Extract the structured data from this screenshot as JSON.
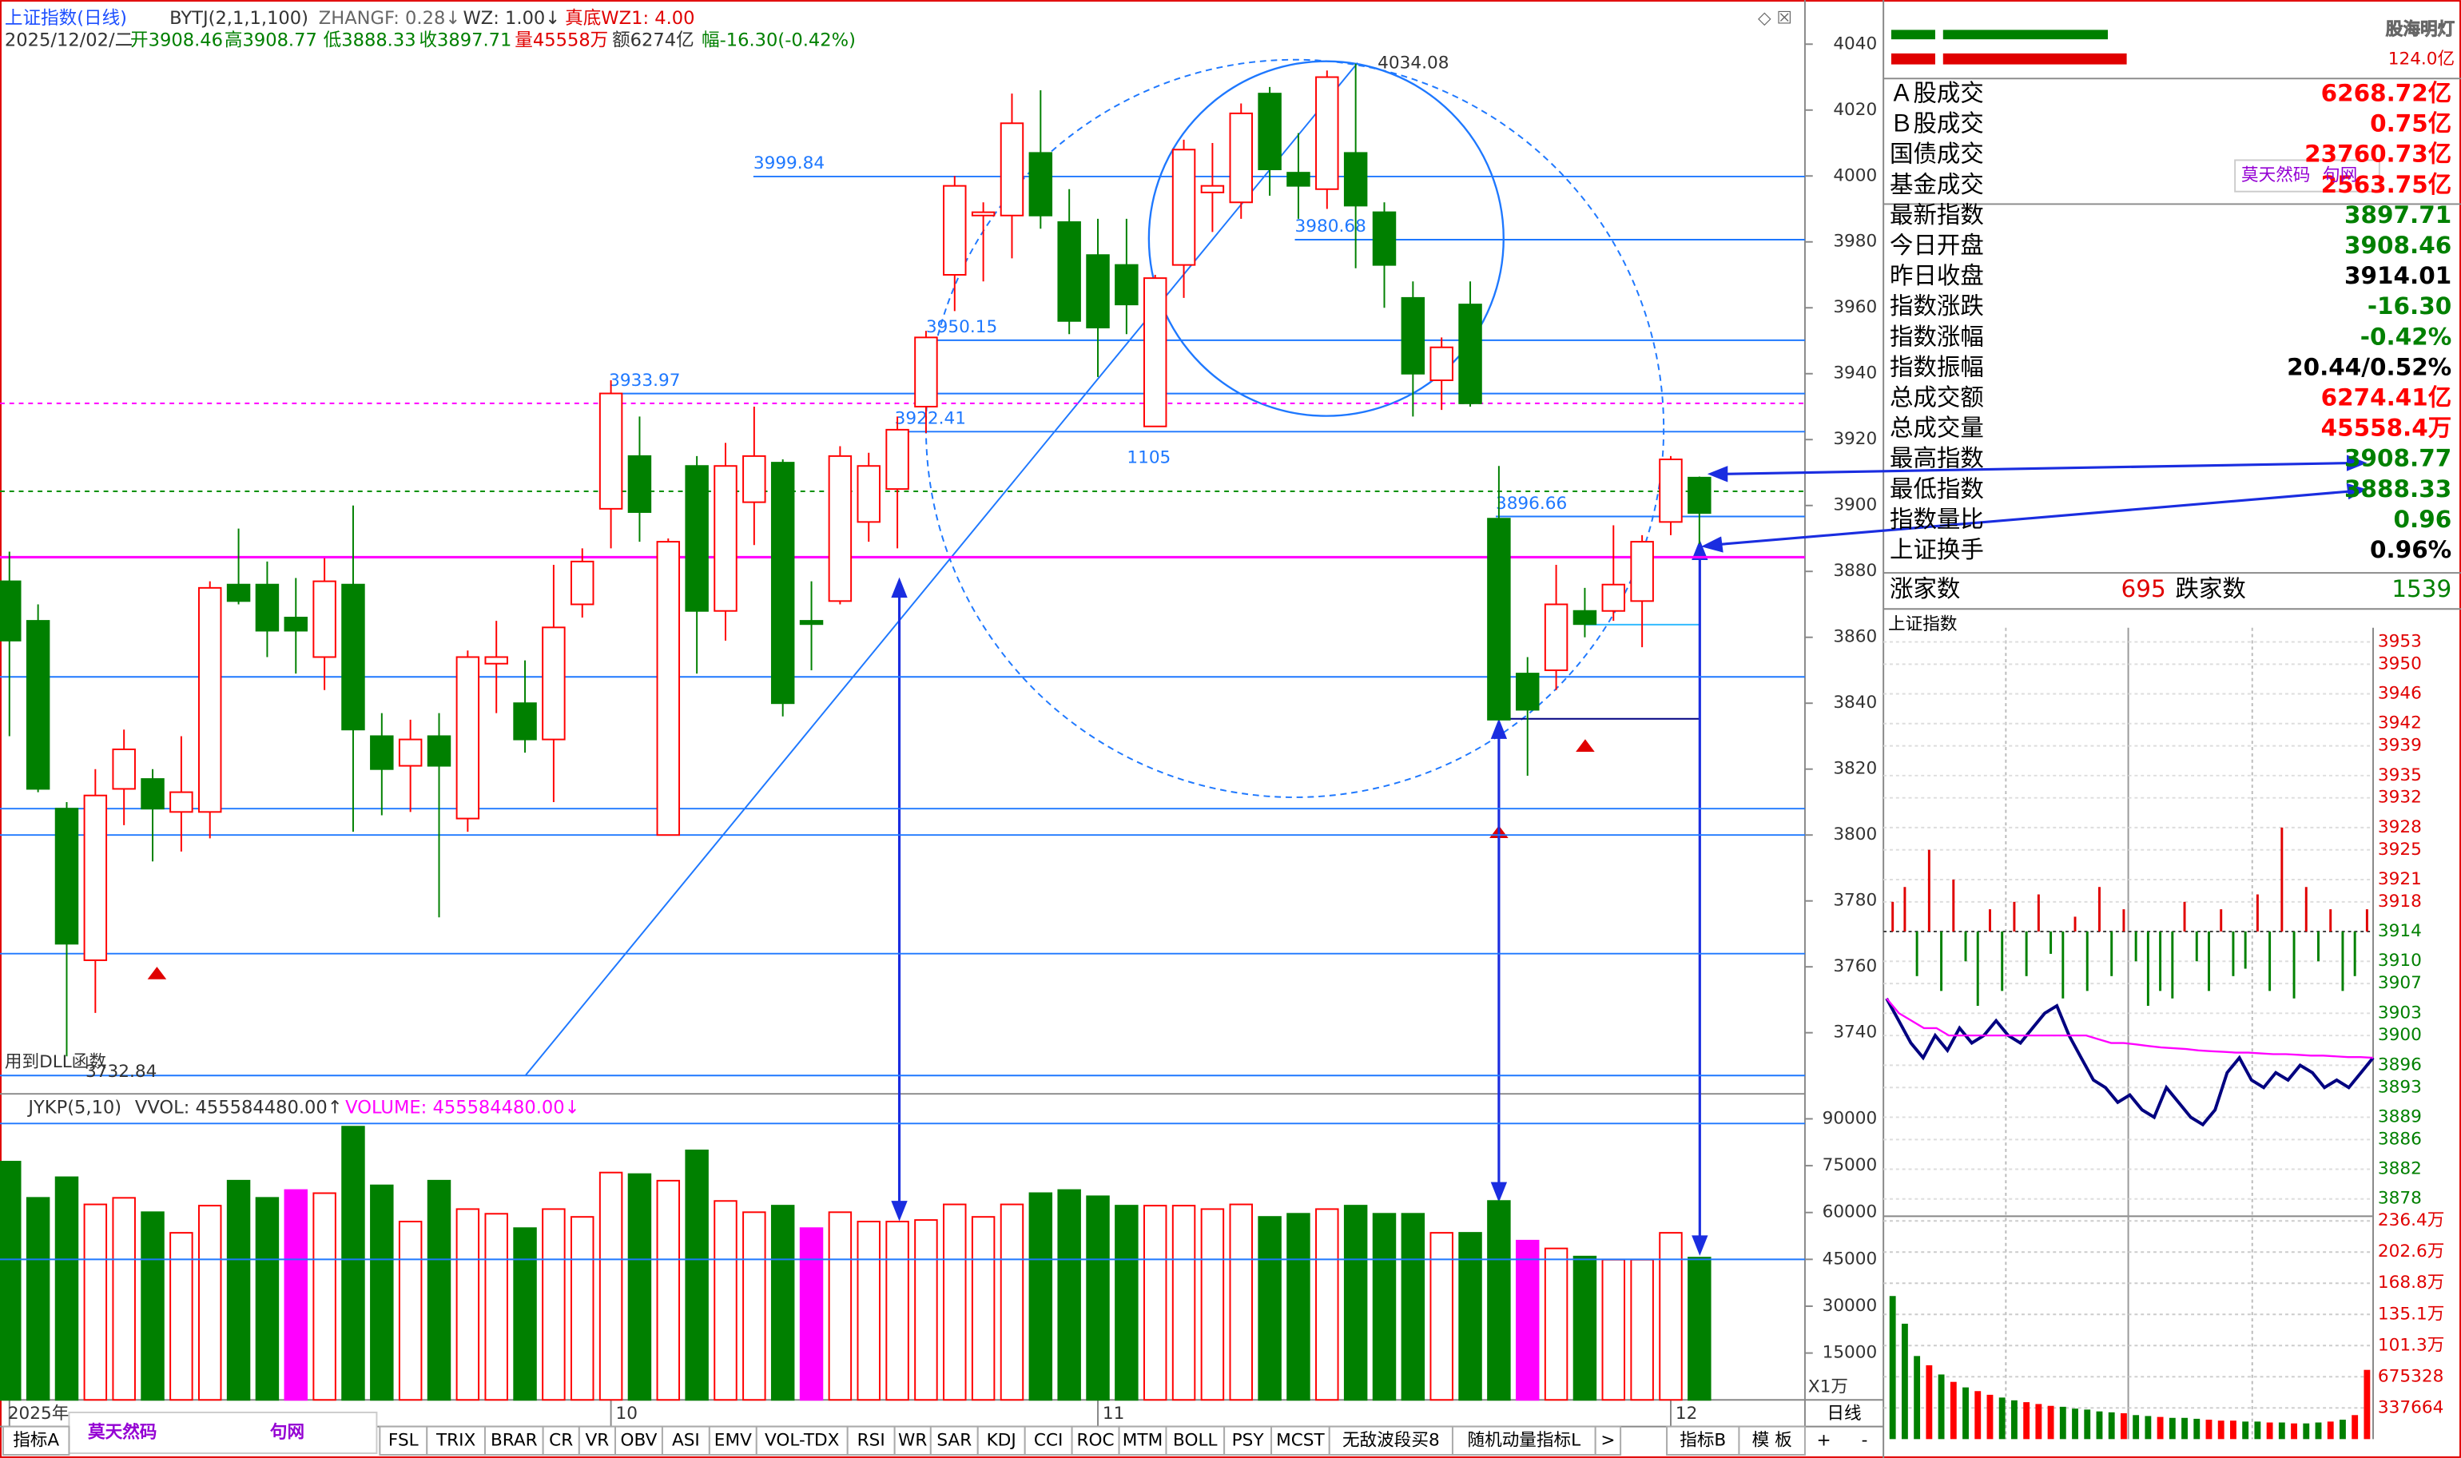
{
  "header": {
    "name": "上证指数(日线)",
    "indicator": "BYTJ(2,1,1,100)",
    "zhangf": "ZHANGF: 0.28↓",
    "wz": "WZ: 1.00↓",
    "wz1": "真底WZ1: 4.00",
    "date": "2025/12/02/二",
    "open": "开3908.46",
    "high": "高3908.77",
    "low": "低3888.33",
    "close": "收3897.71",
    "vol": "量45558万",
    "amount": "额6274亿",
    "change": "幅-16.30(-0.42%)"
  },
  "chart_data": [
    {
      "type": "candlestick",
      "up_color": "#ff0000",
      "down_color": "#008000",
      "categories": [
        "2025年",
        null,
        null,
        null,
        null,
        null,
        null,
        null,
        null,
        null,
        null,
        null,
        null,
        null,
        null,
        null,
        null,
        null,
        null,
        null,
        null,
        "10",
        null,
        null,
        null,
        null,
        null,
        null,
        null,
        null,
        null,
        null,
        null,
        null,
        null,
        null,
        null,
        null,
        "11",
        null,
        null,
        null,
        null,
        null,
        null,
        null,
        null,
        null,
        null,
        null,
        null,
        null,
        null,
        null,
        null,
        null,
        null,
        null,
        "12",
        null
      ],
      "open": [
        3877,
        3865,
        3808,
        3762,
        3814,
        3817,
        3807,
        3807,
        3876,
        3876,
        3866,
        3854,
        3876,
        3830,
        3821,
        3830,
        3805,
        3852,
        3840,
        3829,
        3870,
        3899,
        3915,
        3800,
        3912,
        3868,
        3901,
        3913,
        3865,
        3871,
        3895,
        3905,
        3930,
        3970,
        3988,
        3988,
        4007,
        3986,
        3976,
        3973,
        3924,
        3973,
        3995,
        3992,
        4025,
        4001,
        3996,
        4007,
        3989,
        3963,
        3938,
        3961,
        3896,
        3849,
        3850,
        3868,
        3868,
        3871,
        3895,
        3908.46
      ],
      "high": [
        3886,
        3870,
        3810,
        3820,
        3832,
        3820,
        3830,
        3877,
        3893,
        3883,
        3878,
        3884,
        3900,
        3837,
        3835,
        3837,
        3856,
        3865,
        3853,
        3882,
        3887,
        3938,
        3927,
        3890,
        3915,
        3919,
        3930,
        3914,
        3877,
        3918,
        3916,
        3927,
        3953,
        4000,
        3992,
        4025,
        4026,
        3996,
        3987,
        3987,
        3970,
        4011,
        4010,
        4022,
        4027,
        4013,
        4032,
        4034.08,
        3992,
        3968,
        3951,
        3968,
        3912,
        3854,
        3882,
        3875,
        3894,
        3891,
        3915,
        3908.77
      ],
      "low": [
        3830,
        3813,
        3732.84,
        3746,
        3803,
        3792,
        3795,
        3799,
        3870,
        3854,
        3849,
        3844,
        3801,
        3806,
        3807,
        3775,
        3801,
        3837,
        3825,
        3810,
        3866,
        3887,
        3889,
        3800,
        3849,
        3859,
        3888,
        3836,
        3850,
        3870,
        3889,
        3887,
        3922,
        3959,
        3968,
        3975,
        3984,
        3952,
        3939,
        3952,
        3924,
        3963,
        3983,
        3987,
        3994,
        3987,
        3990,
        3972,
        3960,
        3927,
        3929,
        3930,
        3835,
        3818,
        3844,
        3860,
        3865,
        3857,
        3891,
        3888.33
      ],
      "close": [
        3859,
        3814,
        3767,
        3812,
        3826,
        3808,
        3813,
        3875,
        3871,
        3862,
        3862,
        3877,
        3832,
        3820,
        3829,
        3821,
        3854,
        3854,
        3829,
        3863,
        3883,
        3934,
        3898,
        3889,
        3868,
        3912,
        3915,
        3840,
        3864,
        3915,
        3912,
        3923,
        3951,
        3997,
        3989,
        4016,
        3988,
        3956,
        3954,
        3961,
        3969,
        4008,
        3997,
        4019,
        4002,
        3997,
        4030,
        3991,
        3973,
        3940,
        3948,
        3931,
        3835,
        3838,
        3870,
        3864,
        3876,
        3889,
        3914,
        3897.71
      ],
      "ylim": [
        3722.4,
        4051
      ],
      "yticks": [
        3740,
        3760,
        3780,
        3800,
        3820,
        3840,
        3860,
        3880,
        3900,
        3920,
        3940,
        3960,
        3980,
        4000,
        4020,
        4040
      ],
      "levels": [
        3999.84,
        3980.68,
        3950.15,
        3933.97,
        3922.41,
        3896.66
      ],
      "lines": [
        3848,
        3808,
        3800,
        3764,
        3727
      ],
      "ref_lines": [
        {
          "value": 3931,
          "color": "#ff00ff",
          "style": "dashed"
        },
        {
          "value": 3904.3,
          "color": "#009000",
          "style": "dashed"
        },
        {
          "value": 3884.3,
          "color": "#ff00ff",
          "style": "solid"
        }
      ],
      "annotation": "1105",
      "note": "用到DLL函数"
    },
    {
      "type": "bar",
      "labels": {
        "jykp": "JYKP(5,10)",
        "vvol": "VVOL: 455584480.00↑",
        "volume": "VOLUME: 455584480.00↓",
        "unit": "X1万"
      },
      "values": [
        76300,
        64700,
        71300,
        62600,
        64700,
        60100,
        53500,
        62200,
        70200,
        64700,
        67200,
        66200,
        87500,
        68700,
        57100,
        70200,
        61100,
        59600,
        55000,
        61100,
        58600,
        72800,
        72300,
        70200,
        79900,
        63700,
        60100,
        62200,
        55000,
        60100,
        57100,
        57100,
        57600,
        62600,
        58600,
        62600,
        66200,
        67200,
        65200,
        62200,
        62200,
        62200,
        61100,
        62600,
        58600,
        59600,
        61100,
        62200,
        59600,
        59600,
        53500,
        53500,
        63700,
        51000,
        48500,
        45900,
        44900,
        44900,
        53500,
        45558
      ],
      "colors": [
        "#008000",
        "#008000",
        "#008000",
        "#ff0000",
        "#ff0000",
        "#008000",
        "#ff0000",
        "#ff0000",
        "#008000",
        "#008000",
        "#ff00ff",
        "#ff0000",
        "#008000",
        "#008000",
        "#ff0000",
        "#008000",
        "#ff0000",
        "#ff0000",
        "#008000",
        "#ff0000",
        "#ff0000",
        "#ff0000",
        "#008000",
        "#ff0000",
        "#008000",
        "#ff0000",
        "#ff0000",
        "#008000",
        "#ff00ff",
        "#ff0000",
        "#ff0000",
        "#ff0000",
        "#ff0000",
        "#ff0000",
        "#ff0000",
        "#ff0000",
        "#008000",
        "#008000",
        "#008000",
        "#008000",
        "#ff0000",
        "#ff0000",
        "#ff0000",
        "#ff0000",
        "#008000",
        "#008000",
        "#ff0000",
        "#008000",
        "#008000",
        "#008000",
        "#ff0000",
        "#008000",
        "#008000",
        "#ff00ff",
        "#ff0000",
        "#008000",
        "#ff0000",
        "#ff0000",
        "#ff0000",
        "#008000"
      ],
      "ylim": [
        0,
        98000
      ],
      "yticks": [
        15000,
        30000,
        45000,
        60000,
        75000,
        90000
      ],
      "ref_lines": [
        88500,
        45000
      ]
    },
    {
      "type": "line",
      "title": "上证指数",
      "base": 3914.01,
      "ylim": [
        3876.3,
        3954.9
      ],
      "yticks": [
        3953,
        3950,
        3946,
        3942,
        3939,
        3935,
        3932,
        3928,
        3925,
        3921,
        3918,
        3914,
        3910,
        3907,
        3903,
        3900,
        3896,
        3893,
        3889,
        3886,
        3882,
        3878
      ],
      "series": [
        {
          "color": "#000080",
          "values": [
            3905,
            3902,
            3899,
            3897,
            3900,
            3898,
            3901,
            3899,
            3900,
            3902,
            3900,
            3899,
            3901,
            3903,
            3904,
            3900,
            3897,
            3894,
            3893,
            3891,
            3892,
            3890,
            3889,
            3893,
            3891,
            3889,
            3888,
            3890,
            3895,
            3897,
            3894,
            3893,
            3895,
            3894,
            3896,
            3895,
            3893,
            3894,
            3893,
            3895,
            3897
          ]
        },
        {
          "color": "#ff00ff",
          "values": [
            3905,
            3903,
            3902,
            3901,
            3901,
            3900,
            3900,
            3900,
            3900,
            3900,
            3900,
            3900,
            3900,
            3900,
            3900,
            3900,
            3900,
            3899.5,
            3899,
            3899,
            3898.8,
            3898.6,
            3898.4,
            3898.3,
            3898.2,
            3898,
            3897.9,
            3897.8,
            3897.7,
            3897.7,
            3897.6,
            3897.5,
            3897.5,
            3897.4,
            3897.3,
            3897.3,
            3897.2,
            3897.1,
            3897.1,
            3897
          ]
        }
      ],
      "bars": [
        3918,
        3920,
        3908,
        3925,
        3906,
        3921,
        3910,
        3904,
        3917,
        3906,
        3918,
        3908,
        3919,
        3911,
        3905,
        3916,
        3906,
        3920,
        3908,
        3917,
        3910,
        3904,
        3906,
        3905,
        3918,
        3910,
        3906,
        3917,
        3908,
        3909,
        3919,
        3906,
        3928,
        3905,
        3920,
        3910,
        3917,
        3906,
        3908,
        3917
      ]
    },
    {
      "type": "bar",
      "up_color": "#ff0000",
      "down_color": "#008000",
      "ylim": [
        0,
        2414000
      ],
      "yticks": [
        {
          "value": 2363648,
          "label": "236.4万"
        },
        {
          "value": 2025984,
          "label": "202.6万"
        },
        {
          "value": 1688320,
          "label": "168.8万"
        },
        {
          "value": 1350656,
          "label": "135.1万"
        },
        {
          "value": 1012992,
          "label": "101.3万"
        },
        675328,
        337664
      ],
      "values": [
        1550000,
        1250000,
        900000,
        800000,
        700000,
        620000,
        560000,
        520000,
        480000,
        450000,
        420000,
        400000,
        380000,
        360000,
        350000,
        330000,
        320000,
        300000,
        290000,
        280000,
        260000,
        250000,
        240000,
        230000,
        230000,
        220000,
        210000,
        200000,
        200000,
        190000,
        190000,
        180000,
        180000,
        170000,
        170000,
        180000,
        190000,
        210000,
        260000,
        750000
      ]
    }
  ],
  "panel": {
    "brand": "股海明灯",
    "top_value": "124.0亿",
    "rows": [
      {
        "label": "Ａ股成交",
        "value": "6268.72亿",
        "color": "#ff0000"
      },
      {
        "label": "Ｂ股成交",
        "value": "0.75亿",
        "color": "#ff0000"
      },
      {
        "label": "国债成交",
        "value": "23760.73亿",
        "color": "#ff0000"
      },
      {
        "label": "基金成交",
        "value": "2563.75亿",
        "color": "#ff0000"
      },
      {
        "label": "最新指数",
        "value": "3897.71",
        "color": "#008000"
      },
      {
        "label": "今日开盘",
        "value": "3908.46",
        "color": "#008000"
      },
      {
        "label": "昨日收盘",
        "value": "3914.01",
        "color": "#000000"
      },
      {
        "label": "指数涨跌",
        "value": "-16.30",
        "color": "#008000"
      },
      {
        "label": "指数涨幅",
        "value": "-0.42%",
        "color": "#008000"
      },
      {
        "label": "指数振幅",
        "value": "20.44/0.52%",
        "color": "#000000"
      },
      {
        "label": "总成交额",
        "value": "6274.41亿",
        "color": "#ff0000"
      },
      {
        "label": "总成交量",
        "value": "45558.4万",
        "color": "#ff0000"
      },
      {
        "label": "最高指数",
        "value": "3908.77",
        "color": "#008000"
      },
      {
        "label": "最低指数",
        "value": "3888.33",
        "color": "#008000"
      },
      {
        "label": "指数量比",
        "value": "0.96",
        "color": "#008000"
      },
      {
        "label": "上证换手",
        "value": "0.96%",
        "color": "#000000"
      }
    ],
    "up_label": "涨家数",
    "up_count": 695,
    "down_label": "跌家数",
    "down_count": 1539
  },
  "tabs": [
    "FSL",
    "TRIX",
    "BRAR",
    "CR",
    "VR",
    "OBV",
    "ASI",
    "EMV",
    "VOL-TDX",
    "RSI",
    "WR",
    "SAR",
    "KDJ",
    "CCI",
    "ROC",
    "MTM",
    "BOLL",
    "PSY",
    "MCST",
    "无敌波段买8",
    "随机动量指标L",
    ">"
  ],
  "tab_first": "指标A",
  "tab_b": "指标B",
  "tab_template": "模 板",
  "period": "日线",
  "zoom_in": "+",
  "zoom_out": "-",
  "watermark": {
    "left": "莫天然码",
    "right": "句网"
  }
}
